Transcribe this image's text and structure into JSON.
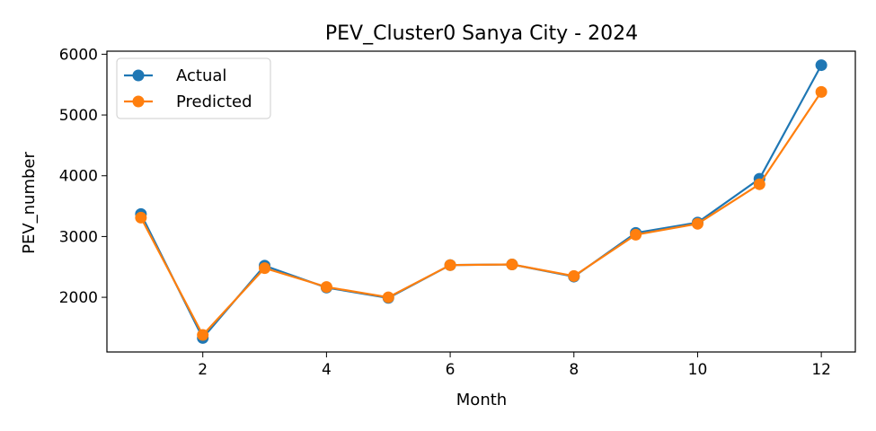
{
  "chart_data": {
    "type": "line",
    "title": "PEV_Cluster0 Sanya City - 2024",
    "xlabel": "Month",
    "ylabel": "PEV_number",
    "x": [
      1,
      2,
      3,
      4,
      5,
      6,
      7,
      8,
      9,
      10,
      11,
      12
    ],
    "xlim": [
      0.45,
      12.55
    ],
    "ylim": [
      1100,
      6050
    ],
    "xticks": [
      2,
      4,
      6,
      8,
      10,
      12
    ],
    "yticks": [
      2000,
      3000,
      4000,
      5000,
      6000
    ],
    "grid": false,
    "legend_position": "top-left",
    "series": [
      {
        "name": "Actual",
        "color": "#1f77b4",
        "values": [
          3370,
          1330,
          2520,
          2160,
          1990,
          2530,
          2540,
          2340,
          3060,
          3230,
          3950,
          5820
        ]
      },
      {
        "name": "Predicted",
        "color": "#ff7f0e",
        "values": [
          3310,
          1380,
          2480,
          2170,
          2000,
          2530,
          2540,
          2350,
          3030,
          3210,
          3860,
          5380
        ]
      }
    ]
  }
}
